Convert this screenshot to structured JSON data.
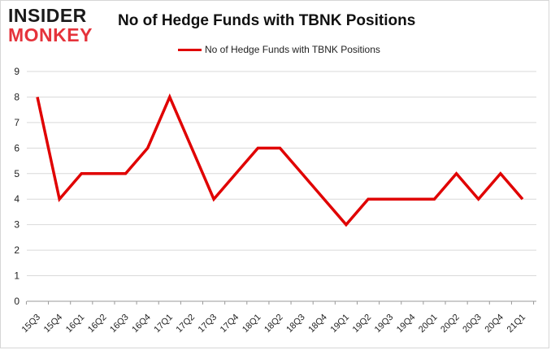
{
  "logo": {
    "line1": "INSIDER",
    "line2": "MONKEY"
  },
  "chart_data": {
    "type": "line",
    "title": "No of Hedge Funds with TBNK Positions",
    "xlabel": "",
    "ylabel": "",
    "categories": [
      "15Q3",
      "15Q4",
      "16Q1",
      "16Q2",
      "16Q3",
      "16Q4",
      "17Q1",
      "17Q2",
      "17Q3",
      "17Q4",
      "18Q1",
      "18Q2",
      "18Q3",
      "18Q4",
      "19Q1",
      "19Q2",
      "19Q3",
      "19Q4",
      "20Q1",
      "20Q2",
      "20Q3",
      "20Q4",
      "21Q1"
    ],
    "series": [
      {
        "name": "No of Hedge Funds with TBNK Positions",
        "values": [
          8,
          4,
          5,
          5,
          5,
          6,
          8,
          6,
          4,
          5,
          6,
          6,
          5,
          4,
          3,
          4,
          4,
          4,
          4,
          5,
          4,
          5,
          4
        ],
        "color": "#e00000"
      }
    ],
    "ylim": [
      0,
      9
    ],
    "yticks": [
      0,
      1,
      2,
      3,
      4,
      5,
      6,
      7,
      8,
      9
    ],
    "grid": "horizontal",
    "legend": "top-center"
  }
}
